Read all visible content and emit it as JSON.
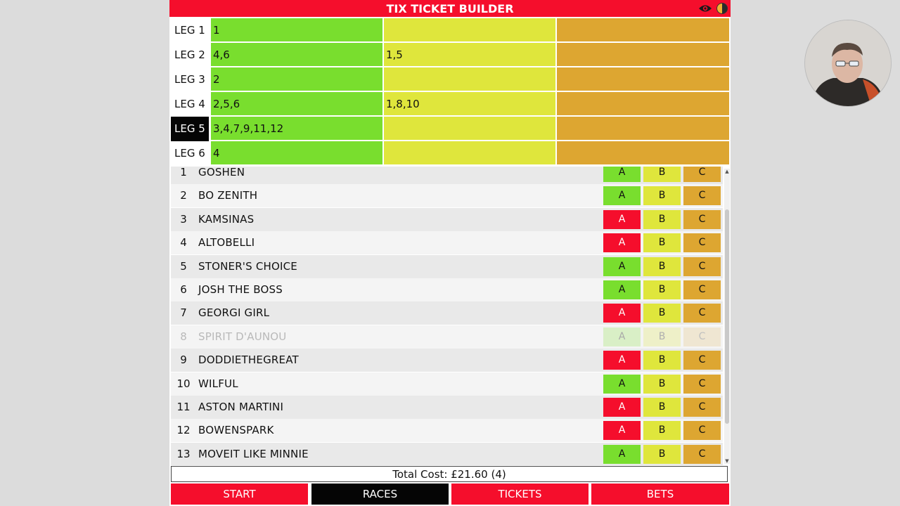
{
  "header": {
    "title": "TIX TICKET BUILDER",
    "icons": [
      "eye-icon",
      "contrast-icon"
    ]
  },
  "legs": [
    {
      "label": "LEG 1",
      "a": "1",
      "b": "",
      "c": "",
      "active": false
    },
    {
      "label": "LEG 2",
      "a": "4,6",
      "b": "1,5",
      "c": "",
      "active": false
    },
    {
      "label": "LEG 3",
      "a": "2",
      "b": "",
      "c": "",
      "active": false
    },
    {
      "label": "LEG 4",
      "a": "2,5,6",
      "b": "1,8,10",
      "c": "",
      "active": false
    },
    {
      "label": "LEG 5",
      "a": "3,4,7,9,11,12",
      "b": "",
      "c": "",
      "active": true
    },
    {
      "label": "LEG 6",
      "a": "4",
      "b": "",
      "c": "",
      "active": false
    }
  ],
  "runners": [
    {
      "num": "1",
      "name": "GOSHEN",
      "a": "A",
      "b": "B",
      "c": "C",
      "a_state": "green",
      "scratched": false
    },
    {
      "num": "2",
      "name": "BO ZENITH",
      "a": "A",
      "b": "B",
      "c": "C",
      "a_state": "green",
      "scratched": false
    },
    {
      "num": "3",
      "name": "KAMSINAS",
      "a": "A",
      "b": "B",
      "c": "C",
      "a_state": "red",
      "scratched": false
    },
    {
      "num": "4",
      "name": "ALTOBELLI",
      "a": "A",
      "b": "B",
      "c": "C",
      "a_state": "red",
      "scratched": false
    },
    {
      "num": "5",
      "name": "STONER'S CHOICE",
      "a": "A",
      "b": "B",
      "c": "C",
      "a_state": "green",
      "scratched": false
    },
    {
      "num": "6",
      "name": "JOSH THE BOSS",
      "a": "A",
      "b": "B",
      "c": "C",
      "a_state": "green",
      "scratched": false
    },
    {
      "num": "7",
      "name": "GEORGI GIRL",
      "a": "A",
      "b": "B",
      "c": "C",
      "a_state": "red",
      "scratched": false
    },
    {
      "num": "8",
      "name": "SPIRIT D'AUNOU",
      "a": "A",
      "b": "B",
      "c": "C",
      "a_state": "green",
      "scratched": true
    },
    {
      "num": "9",
      "name": "DODDIETHEGREAT",
      "a": "A",
      "b": "B",
      "c": "C",
      "a_state": "red",
      "scratched": false
    },
    {
      "num": "10",
      "name": "WILFUL",
      "a": "A",
      "b": "B",
      "c": "C",
      "a_state": "green",
      "scratched": false
    },
    {
      "num": "11",
      "name": "ASTON MARTINI",
      "a": "A",
      "b": "B",
      "c": "C",
      "a_state": "red",
      "scratched": false
    },
    {
      "num": "12",
      "name": "BOWENSPARK",
      "a": "A",
      "b": "B",
      "c": "C",
      "a_state": "red",
      "scratched": false
    },
    {
      "num": "13",
      "name": "MOVEIT LIKE MINNIE",
      "a": "A",
      "b": "B",
      "c": "C",
      "a_state": "green",
      "scratched": false
    }
  ],
  "total": {
    "text": "Total Cost: £21.60 (4)"
  },
  "nav": [
    {
      "label": "START",
      "active": false
    },
    {
      "label": "RACES",
      "active": true
    },
    {
      "label": "TICKETS",
      "active": false
    },
    {
      "label": "BETS",
      "active": false
    }
  ],
  "colors": {
    "red": "#f50e2c",
    "green": "#79de2e",
    "yellow": "#dfe63c",
    "amber": "#dda631",
    "black": "#050505"
  }
}
